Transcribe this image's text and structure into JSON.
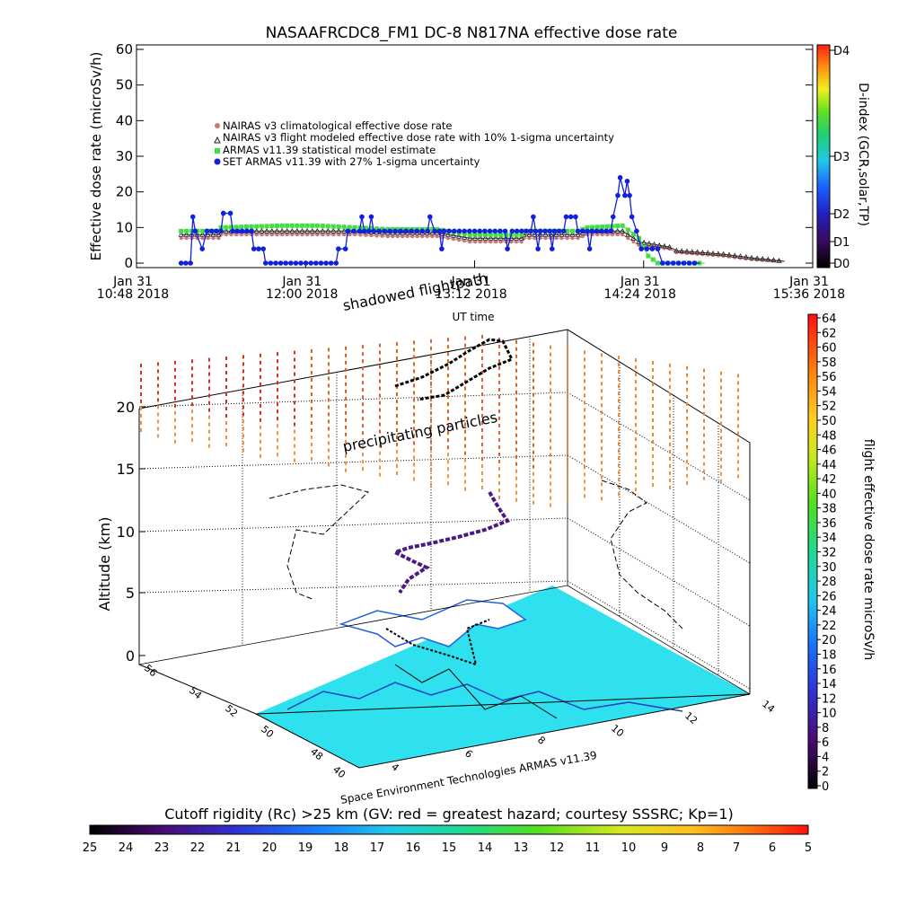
{
  "chart_data": [
    {
      "type": "line",
      "title": "NASAAFRCDC8_FM1 DC-8    N817NA effective dose rate",
      "ylabel": "Effective dose rate (microSv/h)",
      "xlabel": "UT time",
      "ylim": [
        0,
        60
      ],
      "yticks": [
        0,
        10,
        20,
        30,
        40,
        50,
        60
      ],
      "xrange_minutes": [
        648,
        936
      ],
      "xticks": [
        {
          "t": 648,
          "line1": "Jan 31",
          "line2": "10:48 2018"
        },
        {
          "t": 720,
          "line1": "Jan 31",
          "line2": "12:00 2018"
        },
        {
          "t": 792,
          "line1": "Jan 31",
          "line2": "13:12 2018"
        },
        {
          "t": 864,
          "line1": "Jan 31",
          "line2": "14:24 2018"
        },
        {
          "t": 936,
          "line1": "Jan 31",
          "line2": "15:36 2018"
        }
      ],
      "right_axis": {
        "label": "D-index (GCR,solar,TP)",
        "ticks": [
          "D0",
          "D1",
          "D2",
          "D3",
          "D4"
        ]
      },
      "legend_placement": "upper-left",
      "series": [
        {
          "name": "NAIRAS v3 climatological effective dose rate",
          "color": "#c87878",
          "marker": "diamond",
          "points": [
            [
              667,
              7
            ],
            [
              683,
              7
            ],
            [
              684,
              8
            ],
            [
              710,
              8
            ],
            [
              725,
              8
            ],
            [
              741,
              8
            ],
            [
              755,
              7.5
            ],
            [
              776,
              7.5
            ],
            [
              790,
              6
            ],
            [
              812,
              6
            ],
            [
              813,
              7
            ],
            [
              836,
              7
            ],
            [
              840,
              8
            ],
            [
              855,
              8
            ],
            [
              862,
              5
            ],
            [
              875,
              4
            ],
            [
              878,
              3
            ],
            [
              898,
              2
            ],
            [
              910,
              1
            ],
            [
              924,
              0.5
            ]
          ]
        },
        {
          "name": "NAIRAS v3 flight modeled effective dose rate with 10% 1-sigma uncertainty",
          "color": "#222222",
          "marker": "triangle",
          "points": [
            [
              667,
              8
            ],
            [
              683,
              8
            ],
            [
              684,
              9
            ],
            [
              710,
              9
            ],
            [
              725,
              9
            ],
            [
              741,
              9
            ],
            [
              755,
              8.5
            ],
            [
              776,
              8.5
            ],
            [
              790,
              7
            ],
            [
              812,
              7
            ],
            [
              813,
              8
            ],
            [
              836,
              8
            ],
            [
              840,
              9
            ],
            [
              855,
              9
            ],
            [
              862,
              6
            ],
            [
              875,
              4.5
            ],
            [
              878,
              3.5
            ],
            [
              898,
              2.5
            ],
            [
              910,
              1.5
            ],
            [
              924,
              0.5
            ]
          ]
        },
        {
          "name": "ARMAS v11.39 statistical model estimate",
          "color": "#44dd44",
          "marker": "square",
          "points": [
            [
              667,
              9
            ],
            [
              683,
              9
            ],
            [
              684,
              10
            ],
            [
              710,
              10.5
            ],
            [
              725,
              10.5
            ],
            [
              741,
              10
            ],
            [
              755,
              9.5
            ],
            [
              776,
              9.5
            ],
            [
              790,
              8
            ],
            [
              812,
              8
            ],
            [
              813,
              9
            ],
            [
              836,
              9
            ],
            [
              840,
              10
            ],
            [
              855,
              10.5
            ],
            [
              862,
              7
            ],
            [
              866,
              2
            ],
            [
              870,
              0
            ],
            [
              890,
              0
            ]
          ]
        },
        {
          "name": "SET ARMAS v11.39 with 27% 1-sigma uncertainty",
          "color": "#1020dd",
          "marker": "circle",
          "points": [
            [
              667,
              0
            ],
            [
              671,
              0
            ],
            [
              672,
              13
            ],
            [
              673,
              9
            ],
            [
              676,
              4
            ],
            [
              678,
              9
            ],
            [
              684,
              9
            ],
            [
              685,
              14
            ],
            [
              688,
              14
            ],
            [
              689,
              9
            ],
            [
              697,
              9
            ],
            [
              698,
              4
            ],
            [
              702,
              4
            ],
            [
              703,
              0
            ],
            [
              733,
              0
            ],
            [
              734,
              4
            ],
            [
              737,
              4
            ],
            [
              738,
              9
            ],
            [
              743,
              9
            ],
            [
              744,
              13
            ],
            [
              745,
              9
            ],
            [
              747,
              9
            ],
            [
              748,
              13
            ],
            [
              749,
              9
            ],
            [
              772,
              9
            ],
            [
              773,
              13
            ],
            [
              775,
              9
            ],
            [
              777,
              9
            ],
            [
              778,
              4
            ],
            [
              779,
              9
            ],
            [
              805,
              9
            ],
            [
              806,
              4
            ],
            [
              808,
              9
            ],
            [
              816,
              9
            ],
            [
              817,
              13
            ],
            [
              818,
              9
            ],
            [
              819,
              4
            ],
            [
              820,
              9
            ],
            [
              824,
              9
            ],
            [
              825,
              4
            ],
            [
              826,
              9
            ],
            [
              830,
              9
            ],
            [
              831,
              13
            ],
            [
              835,
              13
            ],
            [
              836,
              9
            ],
            [
              840,
              9
            ],
            [
              841,
              4
            ],
            [
              842,
              9
            ],
            [
              850,
              9
            ],
            [
              851,
              13
            ],
            [
              853,
              19
            ],
            [
              854,
              24
            ],
            [
              856,
              19
            ],
            [
              857,
              23
            ],
            [
              858,
              19
            ],
            [
              859,
              13
            ],
            [
              861,
              9
            ],
            [
              863,
              4
            ],
            [
              870,
              4
            ],
            [
              872,
              0
            ],
            [
              888,
              0
            ]
          ]
        }
      ]
    },
    {
      "type": "scatter",
      "ylabel": "Altitude (km)",
      "zticks": [
        0,
        5,
        10,
        15,
        20
      ],
      "lat_ticks": [
        "40",
        "48",
        "50",
        "52",
        "54",
        "56"
      ],
      "lon_ticks": [
        "4",
        "6",
        "8",
        "10",
        "12",
        "14"
      ],
      "annotations": [
        "shadowed flightpath",
        "precipitating particles"
      ],
      "footer": "Space Environment Technologies ARMAS v11.39",
      "colorbar": {
        "label": "flight effective dose rate microSv/h",
        "range": [
          0,
          64
        ],
        "ticks": [
          "64",
          "62",
          "60",
          "58",
          "56",
          "54",
          "52",
          "50",
          "48",
          "46",
          "44",
          "42",
          "40",
          "38",
          "36",
          "34",
          "32",
          "30",
          "28",
          "26",
          "24",
          "22",
          "20",
          "18",
          "16",
          "14",
          "12",
          "10",
          "8",
          "6",
          "4",
          "2",
          "0"
        ]
      }
    },
    {
      "type": "heatmap",
      "title": "Cutoff rigidity (Rc) >25 km (GV: red = greatest hazard; courtesy SSSRC; Kp=1)",
      "scale": [
        "25",
        "24",
        "23",
        "22",
        "21",
        "20",
        "19",
        "18",
        "17",
        "16",
        "15",
        "14",
        "13",
        "12",
        "11",
        "10",
        "9",
        "8",
        "7",
        "6",
        "5"
      ]
    }
  ]
}
